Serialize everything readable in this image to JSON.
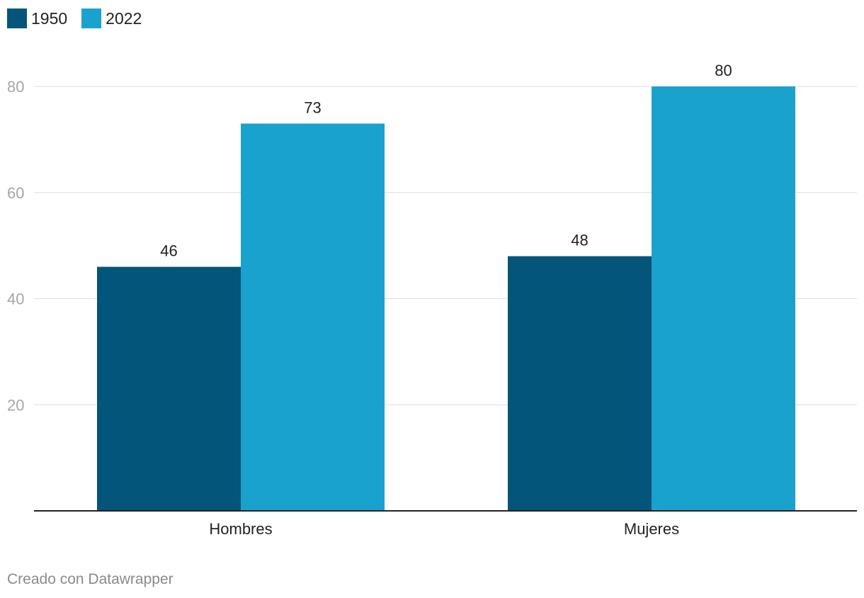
{
  "colors": {
    "series_1950": "#03557a",
    "series_2022": "#1aa2cf",
    "grid": "#dedede",
    "axis": "#222222",
    "tick": "#a6a6a6",
    "label": "#222222"
  },
  "legend": {
    "items": [
      {
        "label": "1950"
      },
      {
        "label": "2022"
      }
    ]
  },
  "footer": {
    "credit": "Creado con Datawrapper"
  },
  "chart_data": {
    "type": "bar",
    "categories": [
      "Hombres",
      "Mujeres"
    ],
    "series": [
      {
        "name": "1950",
        "values": [
          46,
          48
        ]
      },
      {
        "name": "2022",
        "values": [
          73,
          80
        ]
      }
    ],
    "yticks": [
      20,
      40,
      60,
      80
    ],
    "ylim": [
      0,
      80
    ],
    "grid": true,
    "legend_position": "top-left",
    "title": "",
    "xlabel": "",
    "ylabel": ""
  }
}
